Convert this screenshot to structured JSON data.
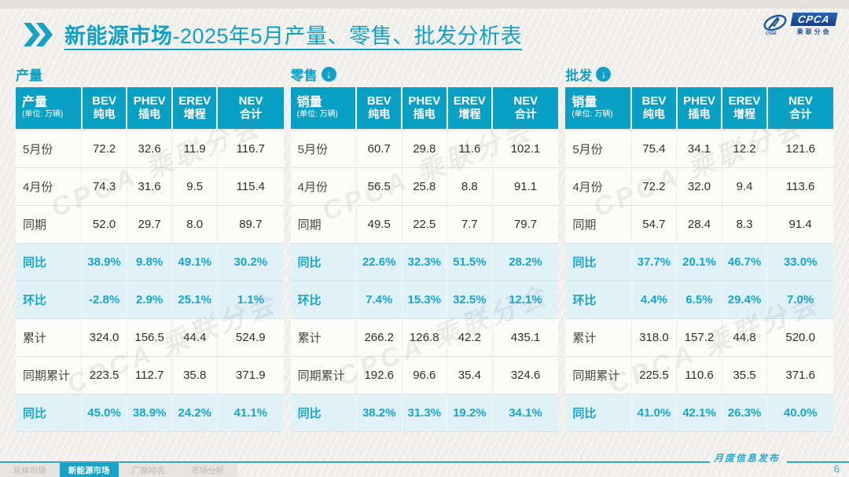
{
  "header": {
    "title_bold": "新能源市场",
    "title_rest": "-2025年5月产量、零售、批发分析表",
    "logo": {
      "cpca": "CPCA",
      "sub": "乘联分会"
    }
  },
  "colors": {
    "accent": "#11a1c5",
    "table_header_bg": "#0aa0c4",
    "highlight_bg": "#e1f1f8",
    "highlight_text": "#17a5cb",
    "logo_blue": "#1c57a5"
  },
  "watermark": "CPCA 乘联分会",
  "tables": [
    {
      "id": "production",
      "section_label": "产量",
      "has_arrow": false,
      "corner_title": "产量",
      "corner_unit": "(单位: 万辆)",
      "columns": [
        {
          "en": "BEV",
          "zh": "纯电"
        },
        {
          "en": "PHEV",
          "zh": "插电"
        },
        {
          "en": "EREV",
          "zh": "增程"
        },
        {
          "en": "NEV",
          "zh": "合计"
        }
      ],
      "rows": [
        {
          "label": "5月份",
          "type": "normal",
          "values": [
            "72.2",
            "32.6",
            "11.9",
            "116.7"
          ]
        },
        {
          "label": "4月份",
          "type": "normal",
          "values": [
            "74.3",
            "31.6",
            "9.5",
            "115.4"
          ]
        },
        {
          "label": "同期",
          "type": "normal",
          "values": [
            "52.0",
            "29.7",
            "8.0",
            "89.7"
          ]
        },
        {
          "label": "同比",
          "type": "highlight",
          "values": [
            "38.9%",
            "9.8%",
            "49.1%",
            "30.2%"
          ]
        },
        {
          "label": "环比",
          "type": "highlight",
          "values": [
            "-2.8%",
            "2.9%",
            "25.1%",
            "1.1%"
          ]
        },
        {
          "label": "累计",
          "type": "normal",
          "values": [
            "324.0",
            "156.5",
            "44.4",
            "524.9"
          ]
        },
        {
          "label": "同期累计",
          "type": "normal",
          "values": [
            "223.5",
            "112.7",
            "35.8",
            "371.9"
          ]
        },
        {
          "label": "同比",
          "type": "highlight",
          "values": [
            "45.0%",
            "38.9%",
            "24.2%",
            "41.1%"
          ]
        }
      ]
    },
    {
      "id": "retail",
      "section_label": "零售",
      "has_arrow": true,
      "corner_title": "销量",
      "corner_unit": "(单位: 万辆)",
      "columns": [
        {
          "en": "BEV",
          "zh": "纯电"
        },
        {
          "en": "PHEV",
          "zh": "插电"
        },
        {
          "en": "EREV",
          "zh": "增程"
        },
        {
          "en": "NEV",
          "zh": "合计"
        }
      ],
      "rows": [
        {
          "label": "5月份",
          "type": "normal",
          "values": [
            "60.7",
            "29.8",
            "11.6",
            "102.1"
          ]
        },
        {
          "label": "4月份",
          "type": "normal",
          "values": [
            "56.5",
            "25.8",
            "8.8",
            "91.1"
          ]
        },
        {
          "label": "同期",
          "type": "normal",
          "values": [
            "49.5",
            "22.5",
            "7.7",
            "79.7"
          ]
        },
        {
          "label": "同比",
          "type": "highlight",
          "values": [
            "22.6%",
            "32.3%",
            "51.5%",
            "28.2%"
          ]
        },
        {
          "label": "环比",
          "type": "highlight",
          "values": [
            "7.4%",
            "15.3%",
            "32.5%",
            "12.1%"
          ]
        },
        {
          "label": "累计",
          "type": "normal",
          "values": [
            "266.2",
            "126.8",
            "42.2",
            "435.1"
          ]
        },
        {
          "label": "同期累计",
          "type": "normal",
          "values": [
            "192.6",
            "96.6",
            "35.4",
            "324.6"
          ]
        },
        {
          "label": "同比",
          "type": "highlight",
          "values": [
            "38.2%",
            "31.3%",
            "19.2%",
            "34.1%"
          ]
        }
      ]
    },
    {
      "id": "wholesale",
      "section_label": "批发",
      "has_arrow": true,
      "corner_title": "销量",
      "corner_unit": "(单位: 万辆)",
      "columns": [
        {
          "en": "BEV",
          "zh": "纯电"
        },
        {
          "en": "PHEV",
          "zh": "插电"
        },
        {
          "en": "EREV",
          "zh": "增程"
        },
        {
          "en": "NEV",
          "zh": "合计"
        }
      ],
      "rows": [
        {
          "label": "5月份",
          "type": "normal",
          "values": [
            "75.4",
            "34.1",
            "12.2",
            "121.6"
          ]
        },
        {
          "label": "4月份",
          "type": "normal",
          "values": [
            "72.2",
            "32.0",
            "9.4",
            "113.6"
          ]
        },
        {
          "label": "同期",
          "type": "normal",
          "values": [
            "54.7",
            "28.4",
            "8.3",
            "91.4"
          ]
        },
        {
          "label": "同比",
          "type": "highlight",
          "values": [
            "37.7%",
            "20.1%",
            "46.7%",
            "33.0%"
          ]
        },
        {
          "label": "环比",
          "type": "highlight",
          "values": [
            "4.4%",
            "6.5%",
            "29.4%",
            "7.0%"
          ]
        },
        {
          "label": "累计",
          "type": "normal",
          "values": [
            "318.0",
            "157.2",
            "44.8",
            "520.0"
          ]
        },
        {
          "label": "同期累计",
          "type": "normal",
          "values": [
            "225.5",
            "110.6",
            "35.5",
            "371.6"
          ]
        },
        {
          "label": "同比",
          "type": "highlight",
          "values": [
            "41.0%",
            "42.1%",
            "26.3%",
            "40.0%"
          ]
        }
      ]
    }
  ],
  "footer": {
    "tabs": [
      {
        "label": "总体市场",
        "active": false
      },
      {
        "label": "新能源市场",
        "active": true
      },
      {
        "label": "厂商排名",
        "active": false
      },
      {
        "label": "市场分析",
        "active": false
      }
    ],
    "release_label": "月度信息发布",
    "page_number": "6"
  }
}
